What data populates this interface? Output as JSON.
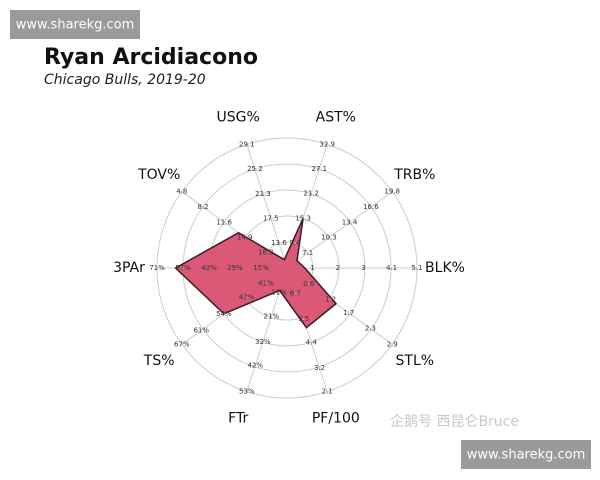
{
  "chart_data": {
    "type": "radar",
    "title": "Ryan Arcidiacono",
    "subtitle": "Chicago Bulls, 2019-20",
    "categories": [
      "USG%",
      "AST%",
      "TRB%",
      "BLK%",
      "STL%",
      "PF/100",
      "FTr",
      "TS%",
      "3PAr",
      "TOV%"
    ],
    "values": [
      11.0,
      15.3,
      5.5,
      0.7,
      1.35,
      5.1,
      10,
      54,
      61,
      13.9
    ],
    "color": "#d9506f",
    "edge_color": "#3a1a24",
    "axes": [
      {
        "lim": [
          9.7,
          29.1
        ],
        "ticks": [
          13.6,
          17.5,
          21.3,
          25.2,
          29.1
        ]
      },
      {
        "lim": [
          3.5,
          32.9
        ],
        "ticks": [
          9.4,
          15.3,
          21.2,
          27.1,
          32.9
        ]
      },
      {
        "lim": [
          4.0,
          19.8
        ],
        "ticks": [
          7.1,
          10.3,
          13.4,
          16.6,
          19.8
        ]
      },
      {
        "lim": [
          0,
          5.1
        ],
        "ticks": [
          1.0,
          2.0,
          3.0,
          4.1,
          5.1
        ]
      },
      {
        "lim": [
          0,
          2.9
        ],
        "ticks": [
          0.6,
          1.2,
          1.7,
          2.3,
          2.9
        ]
      },
      {
        "lim": [
          7.9,
          2.1
        ],
        "ticks": [
          6.7,
          5.5,
          4.4,
          3.2,
          2.1
        ]
      },
      {
        "lim": [
          0.5,
          53
        ],
        "ticks": [
          {
            "value": 11,
            "label": "11%"
          },
          {
            "value": 21,
            "label": "21%"
          },
          {
            "value": 32,
            "label": "32%"
          },
          {
            "value": 42,
            "label": "42%"
          },
          {
            "value": 53,
            "label": "53%"
          }
        ]
      },
      {
        "lim": [
          34.5,
          67
        ],
        "ticks": [
          {
            "value": 41,
            "label": "41%"
          },
          {
            "value": 47,
            "label": "47%"
          },
          {
            "value": 54,
            "label": "54%"
          },
          {
            "value": 61,
            "label": "61%"
          },
          {
            "value": 67,
            "label": "67%"
          }
        ]
      },
      {
        "lim": [
          1,
          71
        ],
        "ticks": [
          {
            "value": 15,
            "label": "15%"
          },
          {
            "value": 29,
            "label": "29%"
          },
          {
            "value": 43,
            "label": "43%"
          },
          {
            "value": 57,
            "label": "57%"
          },
          {
            "value": 71,
            "label": "71%"
          }
        ]
      },
      {
        "lim": [
          21.7,
          4.8
        ],
        "ticks": [
          18.3,
          14.9,
          11.6,
          8.2,
          4.8
        ]
      }
    ]
  },
  "watermark_top": "www.sharekg.com",
  "watermark_bottom": "www.sharekg.com",
  "source_tag": "企鹅号 西昆仑Bruce"
}
